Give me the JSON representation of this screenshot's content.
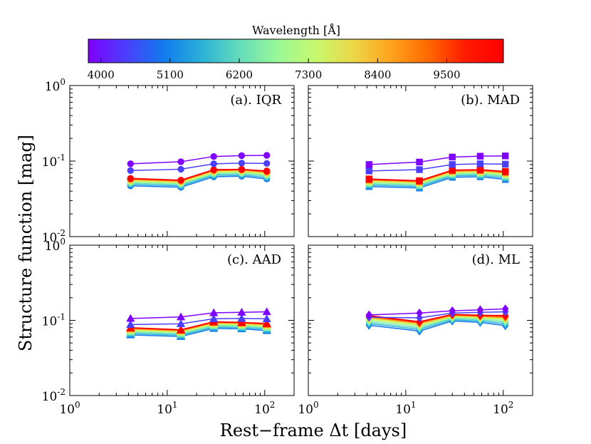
{
  "colorbar": {
    "label": "Wavelength [Å]",
    "ticks": [
      "4000",
      "5100",
      "6200",
      "7300",
      "8400",
      "9500"
    ],
    "colors": [
      "#8000ff",
      "#4a3ffb",
      "#127aee",
      "#2bb1d8",
      "#63dcbb",
      "#99f898",
      "#c5f96f",
      "#ebd847",
      "#ffa41f",
      "#ff6a00",
      "#ff1a00",
      "#ff0000"
    ]
  },
  "ylabel": "Structure function [mag]",
  "xlabel": "Rest−frame Δt [days]",
  "x_tick_labels": [
    {
      "base": "10",
      "exp": "0"
    },
    {
      "base": "10",
      "exp": "1"
    },
    {
      "base": "10",
      "exp": "2"
    }
  ],
  "y_tick_labels": [
    {
      "base": "10",
      "exp": "-2"
    },
    {
      "base": "10",
      "exp": "-1"
    },
    {
      "base": "10",
      "exp": "0"
    }
  ],
  "chart_data": [
    {
      "type": "line",
      "title": "(a). IQR",
      "marker": "circle",
      "x": [
        4.2,
        13.8,
        30,
        58,
        105
      ],
      "xscale": "log",
      "yscale": "log",
      "xlim": [
        1,
        200
      ],
      "ylim": [
        0.01,
        1
      ],
      "series_top_values": [
        0.092,
        0.098,
        0.115,
        0.118,
        0.119
      ],
      "series_second_values": [
        0.075,
        0.078,
        0.092,
        0.094,
        0.093
      ],
      "series_low_values": [
        0.047,
        0.045,
        0.062,
        0.063,
        0.058
      ],
      "series_high_values": [
        0.059,
        0.056,
        0.077,
        0.078,
        0.074
      ]
    },
    {
      "type": "line",
      "title": "(b). MAD",
      "marker": "square",
      "x": [
        4.2,
        13.8,
        30,
        58,
        105
      ],
      "xscale": "log",
      "yscale": "log",
      "xlim": [
        1,
        200
      ],
      "ylim": [
        0.01,
        1
      ],
      "series_top_values": [
        0.09,
        0.097,
        0.113,
        0.116,
        0.117
      ],
      "series_second_values": [
        0.074,
        0.077,
        0.09,
        0.092,
        0.091
      ],
      "series_low_values": [
        0.046,
        0.044,
        0.061,
        0.062,
        0.057
      ],
      "series_high_values": [
        0.058,
        0.055,
        0.076,
        0.077,
        0.073
      ]
    },
    {
      "type": "line",
      "title": "(c). AAD",
      "marker": "triangle-up",
      "x": [
        4.2,
        13.8,
        30,
        58,
        105
      ],
      "xscale": "log",
      "yscale": "log",
      "xlim": [
        1,
        200
      ],
      "ylim": [
        0.01,
        1
      ],
      "series_top_values": [
        0.106,
        0.111,
        0.126,
        0.128,
        0.13
      ],
      "series_second_values": [
        0.088,
        0.09,
        0.105,
        0.106,
        0.105
      ],
      "series_low_values": [
        0.064,
        0.061,
        0.078,
        0.077,
        0.073
      ],
      "series_high_values": [
        0.08,
        0.075,
        0.096,
        0.094,
        0.091
      ]
    },
    {
      "type": "line",
      "title": "(d). ML",
      "marker": "diamond",
      "x": [
        4.2,
        13.8,
        30,
        58,
        105
      ],
      "xscale": "log",
      "yscale": "log",
      "xlim": [
        1,
        200
      ],
      "ylim": [
        0.01,
        1
      ],
      "series_top_values": [
        0.118,
        0.125,
        0.134,
        0.138,
        0.142
      ],
      "series_second_values": [
        0.11,
        0.108,
        0.125,
        0.128,
        0.13
      ],
      "series_low_values": [
        0.086,
        0.072,
        0.098,
        0.094,
        0.085
      ],
      "series_high_values": [
        0.116,
        0.096,
        0.12,
        0.117,
        0.116
      ]
    }
  ]
}
